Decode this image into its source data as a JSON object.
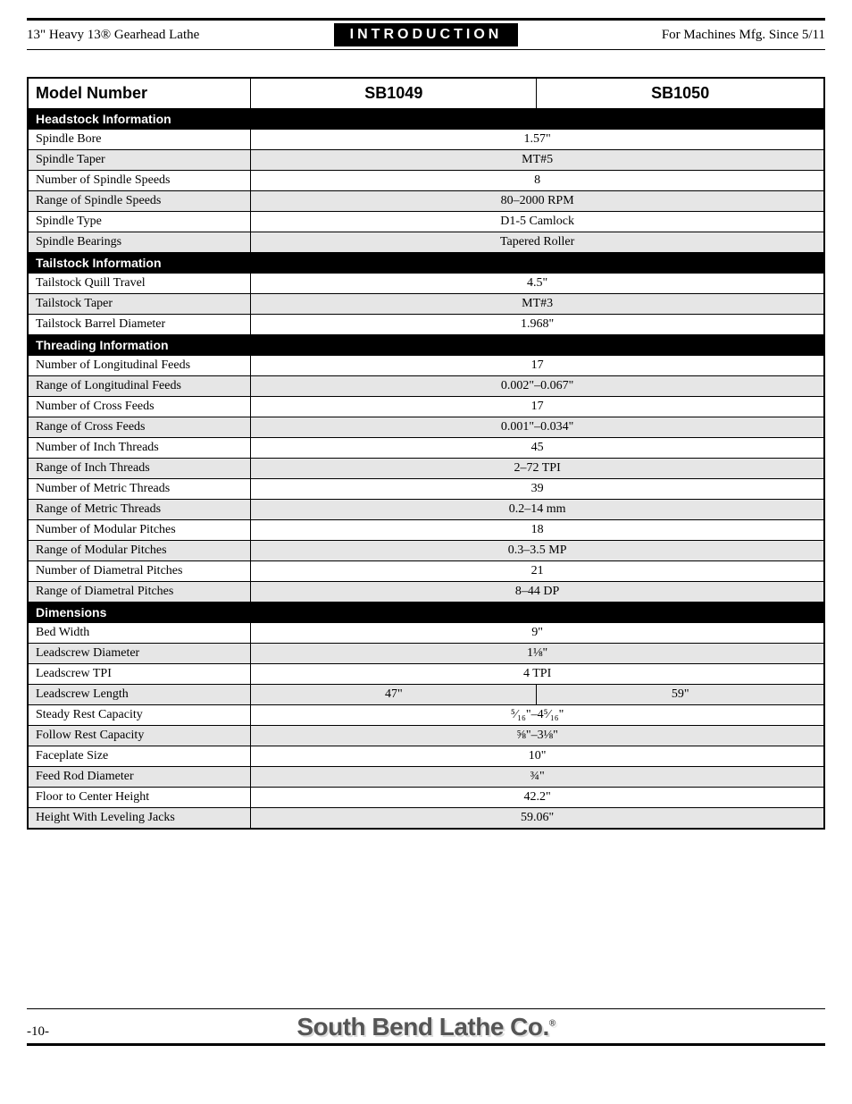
{
  "header": {
    "left": "13\" Heavy 13® Gearhead Lathe",
    "center": "INTRODUCTION",
    "right": "For Machines Mfg. Since 5/11"
  },
  "columns": {
    "label": "Model Number",
    "model_a": "SB1049",
    "model_b": "SB1050"
  },
  "sections": [
    {
      "title": "Headstock Information",
      "rows": [
        {
          "label": "Spindle Bore",
          "a": "1.57\"",
          "b": null,
          "alt": false
        },
        {
          "label": "Spindle Taper",
          "a": "MT#5",
          "b": null,
          "alt": true
        },
        {
          "label": "Number of Spindle Speeds",
          "a": "8",
          "b": null,
          "alt": false
        },
        {
          "label": "Range of Spindle Speeds",
          "a": "80–2000 RPM",
          "b": null,
          "alt": true
        },
        {
          "label": "Spindle Type",
          "a": "D1-5 Camlock",
          "b": null,
          "alt": false
        },
        {
          "label": "Spindle Bearings",
          "a": "Tapered Roller",
          "b": null,
          "alt": true
        }
      ]
    },
    {
      "title": "Tailstock Information",
      "rows": [
        {
          "label": "Tailstock Quill Travel",
          "a": "4.5\"",
          "b": null,
          "alt": false
        },
        {
          "label": "Tailstock Taper",
          "a": "MT#3",
          "b": null,
          "alt": true
        },
        {
          "label": "Tailstock Barrel Diameter",
          "a": "1.968\"",
          "b": null,
          "alt": false
        }
      ]
    },
    {
      "title": "Threading Information",
      "rows": [
        {
          "label": "Number of Longitudinal Feeds",
          "a": "17",
          "b": null,
          "alt": false
        },
        {
          "label": "Range of Longitudinal Feeds",
          "a": "0.002\"–0.067\"",
          "b": null,
          "alt": true
        },
        {
          "label": "Number of Cross Feeds",
          "a": "17",
          "b": null,
          "alt": false
        },
        {
          "label": "Range of Cross Feeds",
          "a": "0.001\"–0.034\"",
          "b": null,
          "alt": true
        },
        {
          "label": "Number of Inch Threads",
          "a": "45",
          "b": null,
          "alt": false
        },
        {
          "label": "Range of Inch Threads",
          "a": "2–72 TPI",
          "b": null,
          "alt": true
        },
        {
          "label": "Number of Metric Threads",
          "a": "39",
          "b": null,
          "alt": false
        },
        {
          "label": "Range of Metric Threads",
          "a": "0.2–14 mm",
          "b": null,
          "alt": true
        },
        {
          "label": "Number of Modular Pitches",
          "a": "18",
          "b": null,
          "alt": false
        },
        {
          "label": "Range of Modular Pitches",
          "a": "0.3–3.5 MP",
          "b": null,
          "alt": true
        },
        {
          "label": "Number of Diametral Pitches",
          "a": "21",
          "b": null,
          "alt": false
        },
        {
          "label": "Range of Diametral Pitches",
          "a": "8–44 DP",
          "b": null,
          "alt": true
        }
      ]
    },
    {
      "title": "Dimensions",
      "rows": [
        {
          "label": "Bed Width",
          "a": "9\"",
          "b": null,
          "alt": false
        },
        {
          "label": "Leadscrew Diameter",
          "a": "1⅛\"",
          "b": null,
          "alt": true
        },
        {
          "label": "Leadscrew TPI",
          "a": "4 TPI",
          "b": null,
          "alt": false
        },
        {
          "label": "Leadscrew Length",
          "a": "47\"",
          "b": "59\"",
          "alt": true
        },
        {
          "label": "Steady Rest Capacity",
          "a": "⁵⁄₁₆\"–4⁵⁄₁₆\"",
          "b": null,
          "alt": false
        },
        {
          "label": "Follow Rest Capacity",
          "a": "⅝\"–3⅛\"",
          "b": null,
          "alt": true
        },
        {
          "label": "Faceplate Size",
          "a": "10\"",
          "b": null,
          "alt": false
        },
        {
          "label": "Feed Rod Diameter",
          "a": "¾\"",
          "b": null,
          "alt": true
        },
        {
          "label": "Floor to Center Height",
          "a": "42.2\"",
          "b": null,
          "alt": false
        },
        {
          "label": "Height With Leveling Jacks",
          "a": "59.06\"",
          "b": null,
          "alt": true
        }
      ]
    }
  ],
  "footer": {
    "page": "-10-",
    "company": "South Bend Lathe Co."
  }
}
